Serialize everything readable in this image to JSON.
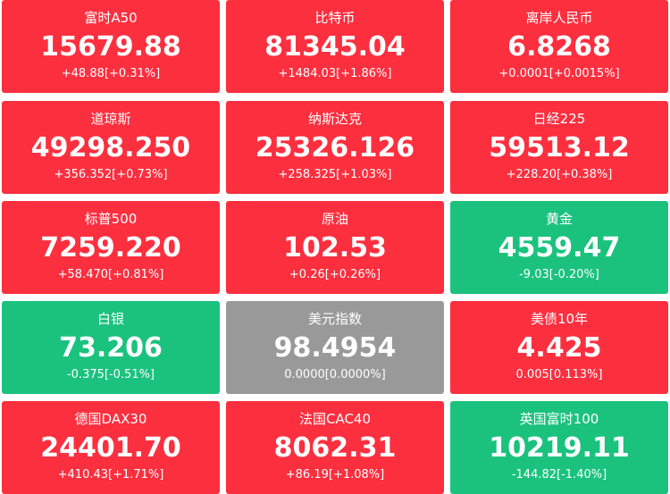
{
  "tiles": [
    {
      "name": "富时A50",
      "price": "15679.88",
      "change": "+48.88[+0.31%]",
      "color": "#fc2f3f"
    },
    {
      "name": "比特币",
      "price": "81345.04",
      "change": "+1484.03[+1.86%]",
      "color": "#fc2f3f"
    },
    {
      "name": "离岸人民币",
      "price": "6.8268",
      "change": "+0.0001[+0.0015%]",
      "color": "#fc2f3f"
    },
    {
      "name": "道琼斯",
      "price": "49298.250",
      "change": "+356.352[+0.73%]",
      "color": "#fc2f3f"
    },
    {
      "name": "纳斯达克",
      "price": "25326.126",
      "change": "+258.325[+1.03%]",
      "color": "#fc2f3f"
    },
    {
      "name": "日经225",
      "price": "59513.12",
      "change": "+228.20[+0.38%]",
      "color": "#fc2f3f"
    },
    {
      "name": "标普500",
      "price": "7259.220",
      "change": "+58.470[+0.81%]",
      "color": "#fc2f3f"
    },
    {
      "name": "原油",
      "price": "102.53",
      "change": "+0.26[+0.26%]",
      "color": "#fc2f3f"
    },
    {
      "name": "黄金",
      "price": "4559.47",
      "change": "-9.03[-0.20%]",
      "color": "#1bc27e"
    },
    {
      "name": "白银",
      "price": "73.206",
      "change": "-0.375[-0.51%]",
      "color": "#1bc27e"
    },
    {
      "name": "美元指数",
      "price": "98.4954",
      "change": "0.0000[0.0000%]",
      "color": "#999999"
    },
    {
      "name": "美债10年",
      "price": "4.425",
      "change": "0.005[0.113%]",
      "color": "#fc2f3f"
    },
    {
      "name": "德国DAX30",
      "price": "24401.70",
      "change": "+410.43[+1.71%]",
      "color": "#fc2f3f"
    },
    {
      "name": "法国CAC40",
      "price": "8062.31",
      "change": "+86.19[+1.08%]",
      "color": "#fc2f3f"
    },
    {
      "name": "英国富时100",
      "price": "10219.11",
      "change": "-144.82[-1.40%]",
      "color": "#1bc27e"
    }
  ]
}
